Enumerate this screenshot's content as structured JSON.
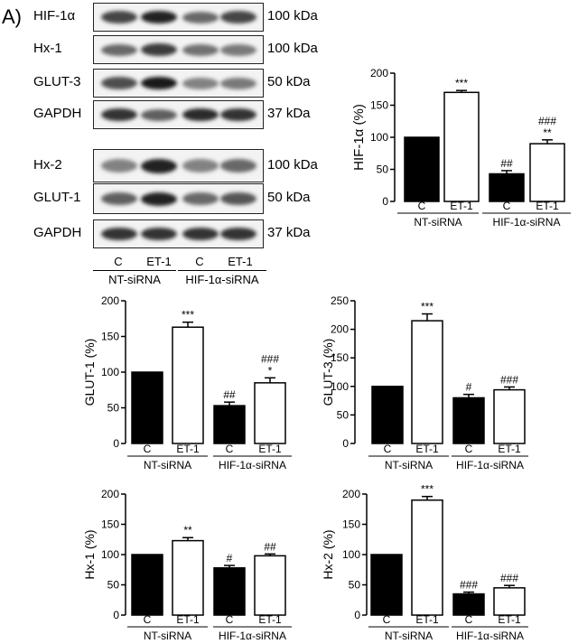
{
  "panel_letter": "A)",
  "blot": {
    "bands": [
      {
        "label": "HIF-1α",
        "size": "100 kDa",
        "intensity": [
          0.75,
          0.95,
          0.55,
          0.75
        ]
      },
      {
        "label": "Hx-1",
        "size": "100 kDa",
        "intensity": [
          0.55,
          0.8,
          0.5,
          0.45
        ]
      },
      {
        "label": "GLUT-3",
        "size": "50 kDa",
        "intensity": [
          0.7,
          1.0,
          0.4,
          0.45
        ]
      },
      {
        "label": "GAPDH",
        "size": "37 kDa",
        "intensity": [
          0.85,
          0.6,
          0.9,
          0.85
        ]
      },
      {
        "label": "Hx-2",
        "size": "100 kDa",
        "intensity": [
          0.4,
          0.95,
          0.4,
          0.55
        ]
      },
      {
        "label": "GLUT-1",
        "size": "50 kDa",
        "intensity": [
          0.6,
          0.95,
          0.55,
          0.65
        ]
      },
      {
        "label": "GAPDH",
        "size": "37 kDa",
        "intensity": [
          0.85,
          0.85,
          0.85,
          0.85
        ]
      }
    ],
    "lanes": [
      "C",
      "ET-1",
      "C",
      "ET-1"
    ],
    "groups": [
      "NT-siRNA",
      "HIF-1α-siRNA"
    ]
  },
  "chart_data": [
    {
      "type": "bar",
      "ylabel": "HIF-1α (%)",
      "ylim": [
        0,
        200
      ],
      "yticks": [
        0,
        50,
        100,
        150,
        200
      ],
      "categories": [
        "C",
        "ET-1",
        "C",
        "ET-1"
      ],
      "groups": [
        "NT-siRNA",
        "HIF-1α-siRNA"
      ],
      "values": [
        100,
        170,
        43,
        90
      ],
      "errors": [
        0,
        3,
        5,
        6
      ],
      "fills": [
        "black",
        "white",
        "black",
        "white"
      ],
      "annotations": [
        [
          "",
          ""
        ],
        [
          "***",
          ""
        ],
        [
          "##",
          ""
        ],
        [
          "**",
          "###"
        ]
      ]
    },
    {
      "type": "bar",
      "ylabel": "GLUT-1 (%)",
      "ylim": [
        0,
        200
      ],
      "yticks": [
        0,
        50,
        100,
        150,
        200
      ],
      "categories": [
        "C",
        "ET-1",
        "C",
        "ET-1"
      ],
      "groups": [
        "NT-siRNA",
        "HIF-1α-siRNA"
      ],
      "values": [
        100,
        163,
        53,
        85
      ],
      "errors": [
        0,
        7,
        5,
        7
      ],
      "fills": [
        "black",
        "white",
        "black",
        "white"
      ],
      "annotations": [
        [
          "",
          ""
        ],
        [
          "***",
          ""
        ],
        [
          "##",
          ""
        ],
        [
          "*",
          "###"
        ]
      ]
    },
    {
      "type": "bar",
      "ylabel": "GLUT-3 (%)",
      "ylim": [
        0,
        250
      ],
      "yticks": [
        0,
        50,
        100,
        150,
        200,
        250
      ],
      "categories": [
        "C",
        "ET-1",
        "C",
        "ET-1"
      ],
      "groups": [
        "NT-siRNA",
        "HIF-1α-siRNA"
      ],
      "values": [
        100,
        215,
        80,
        94
      ],
      "errors": [
        0,
        12,
        6,
        5
      ],
      "fills": [
        "black",
        "white",
        "black",
        "white"
      ],
      "annotations": [
        [
          "",
          ""
        ],
        [
          "***",
          ""
        ],
        [
          "#",
          ""
        ],
        [
          "###",
          ""
        ]
      ]
    },
    {
      "type": "bar",
      "ylabel": "Hx-1 (%)",
      "ylim": [
        0,
        200
      ],
      "yticks": [
        0,
        50,
        100,
        150,
        200
      ],
      "categories": [
        "C",
        "ET-1",
        "C",
        "ET-1"
      ],
      "groups": [
        "NT-siRNA",
        "HIF-1α-siRNA"
      ],
      "values": [
        100,
        123,
        78,
        98
      ],
      "errors": [
        0,
        5,
        4,
        3
      ],
      "fills": [
        "black",
        "white",
        "black",
        "white"
      ],
      "annotations": [
        [
          "",
          ""
        ],
        [
          "**",
          ""
        ],
        [
          "#",
          ""
        ],
        [
          "##",
          ""
        ]
      ]
    },
    {
      "type": "bar",
      "ylabel": "Hx-2 (%)",
      "ylim": [
        0,
        200
      ],
      "yticks": [
        0,
        50,
        100,
        150,
        200
      ],
      "categories": [
        "C",
        "ET-1",
        "C",
        "ET-1"
      ],
      "groups": [
        "NT-siRNA",
        "HIF-1α-siRNA"
      ],
      "values": [
        100,
        190,
        35,
        45
      ],
      "errors": [
        0,
        6,
        3,
        4
      ],
      "fills": [
        "black",
        "white",
        "black",
        "white"
      ],
      "annotations": [
        [
          "",
          ""
        ],
        [
          "***",
          ""
        ],
        [
          "###",
          ""
        ],
        [
          "###",
          ""
        ]
      ]
    }
  ]
}
